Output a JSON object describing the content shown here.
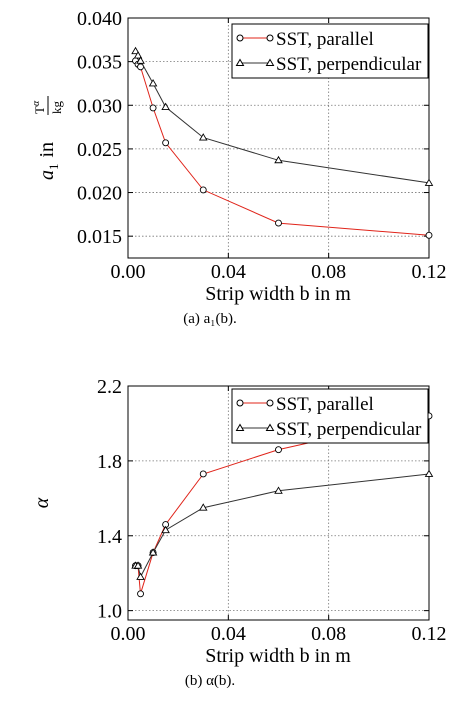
{
  "chart_data": [
    {
      "type": "line",
      "xlabel": "Strip width b in m",
      "ylabel": {
        "main": "a",
        "sub": "1",
        "in": "in",
        "unit_top": "T",
        "unit_top_exp": "α",
        "unit_bottom": "kg"
      },
      "caption": "(a) a₁(b).",
      "xlim": [
        0,
        0.12
      ],
      "ylim": [
        0.0125,
        0.04
      ],
      "x_ticks": [
        0.0,
        0.04,
        0.08,
        0.12
      ],
      "x_tick_labels": [
        "0.00",
        "0.04",
        "0.08",
        "0.12"
      ],
      "y_ticks": [
        0.015,
        0.02,
        0.025,
        0.03,
        0.035,
        0.04
      ],
      "y_tick_labels": [
        "0.015",
        "0.020",
        "0.025",
        "0.030",
        "0.035",
        "0.040"
      ],
      "grid": true,
      "legend_position": "top-right",
      "series": [
        {
          "name": "SST, parallel",
          "color": "#e0241a",
          "marker": "circle",
          "x": [
            0.003,
            0.004,
            0.005,
            0.01,
            0.015,
            0.03,
            0.06,
            0.12
          ],
          "y": [
            0.0351,
            0.0347,
            0.0344,
            0.0297,
            0.0257,
            0.0203,
            0.0165,
            0.0151
          ]
        },
        {
          "name": "SST, perpendicular",
          "color": "#333333",
          "marker": "triangle",
          "x": [
            0.003,
            0.004,
            0.005,
            0.01,
            0.015,
            0.03,
            0.06,
            0.12
          ],
          "y": [
            0.0362,
            0.0357,
            0.0351,
            0.0325,
            0.0298,
            0.0263,
            0.0237,
            0.0211
          ]
        }
      ]
    },
    {
      "type": "line",
      "xlabel": "Strip width b in m",
      "ylabel": {
        "main": "α"
      },
      "caption": "(b) α(b).",
      "xlim": [
        0,
        0.12
      ],
      "ylim": [
        0.95,
        2.2
      ],
      "x_ticks": [
        0.0,
        0.04,
        0.08,
        0.12
      ],
      "x_tick_labels": [
        "0.00",
        "0.04",
        "0.08",
        "0.12"
      ],
      "y_ticks": [
        1.0,
        1.4,
        1.8,
        2.2
      ],
      "y_tick_labels": [
        "1.0",
        "1.4",
        "1.8",
        "2.2"
      ],
      "grid": true,
      "legend_position": "top-right",
      "series": [
        {
          "name": "SST, parallel",
          "color": "#e0241a",
          "marker": "circle",
          "x": [
            0.003,
            0.004,
            0.005,
            0.01,
            0.015,
            0.03,
            0.06,
            0.12
          ],
          "y": [
            1.24,
            1.24,
            1.09,
            1.31,
            1.46,
            1.73,
            1.86,
            2.04
          ]
        },
        {
          "name": "SST, perpendicular",
          "color": "#333333",
          "marker": "triangle",
          "x": [
            0.003,
            0.004,
            0.005,
            0.01,
            0.015,
            0.03,
            0.06,
            0.12
          ],
          "y": [
            1.24,
            1.24,
            1.18,
            1.31,
            1.43,
            1.55,
            1.64,
            1.73
          ]
        }
      ]
    }
  ]
}
